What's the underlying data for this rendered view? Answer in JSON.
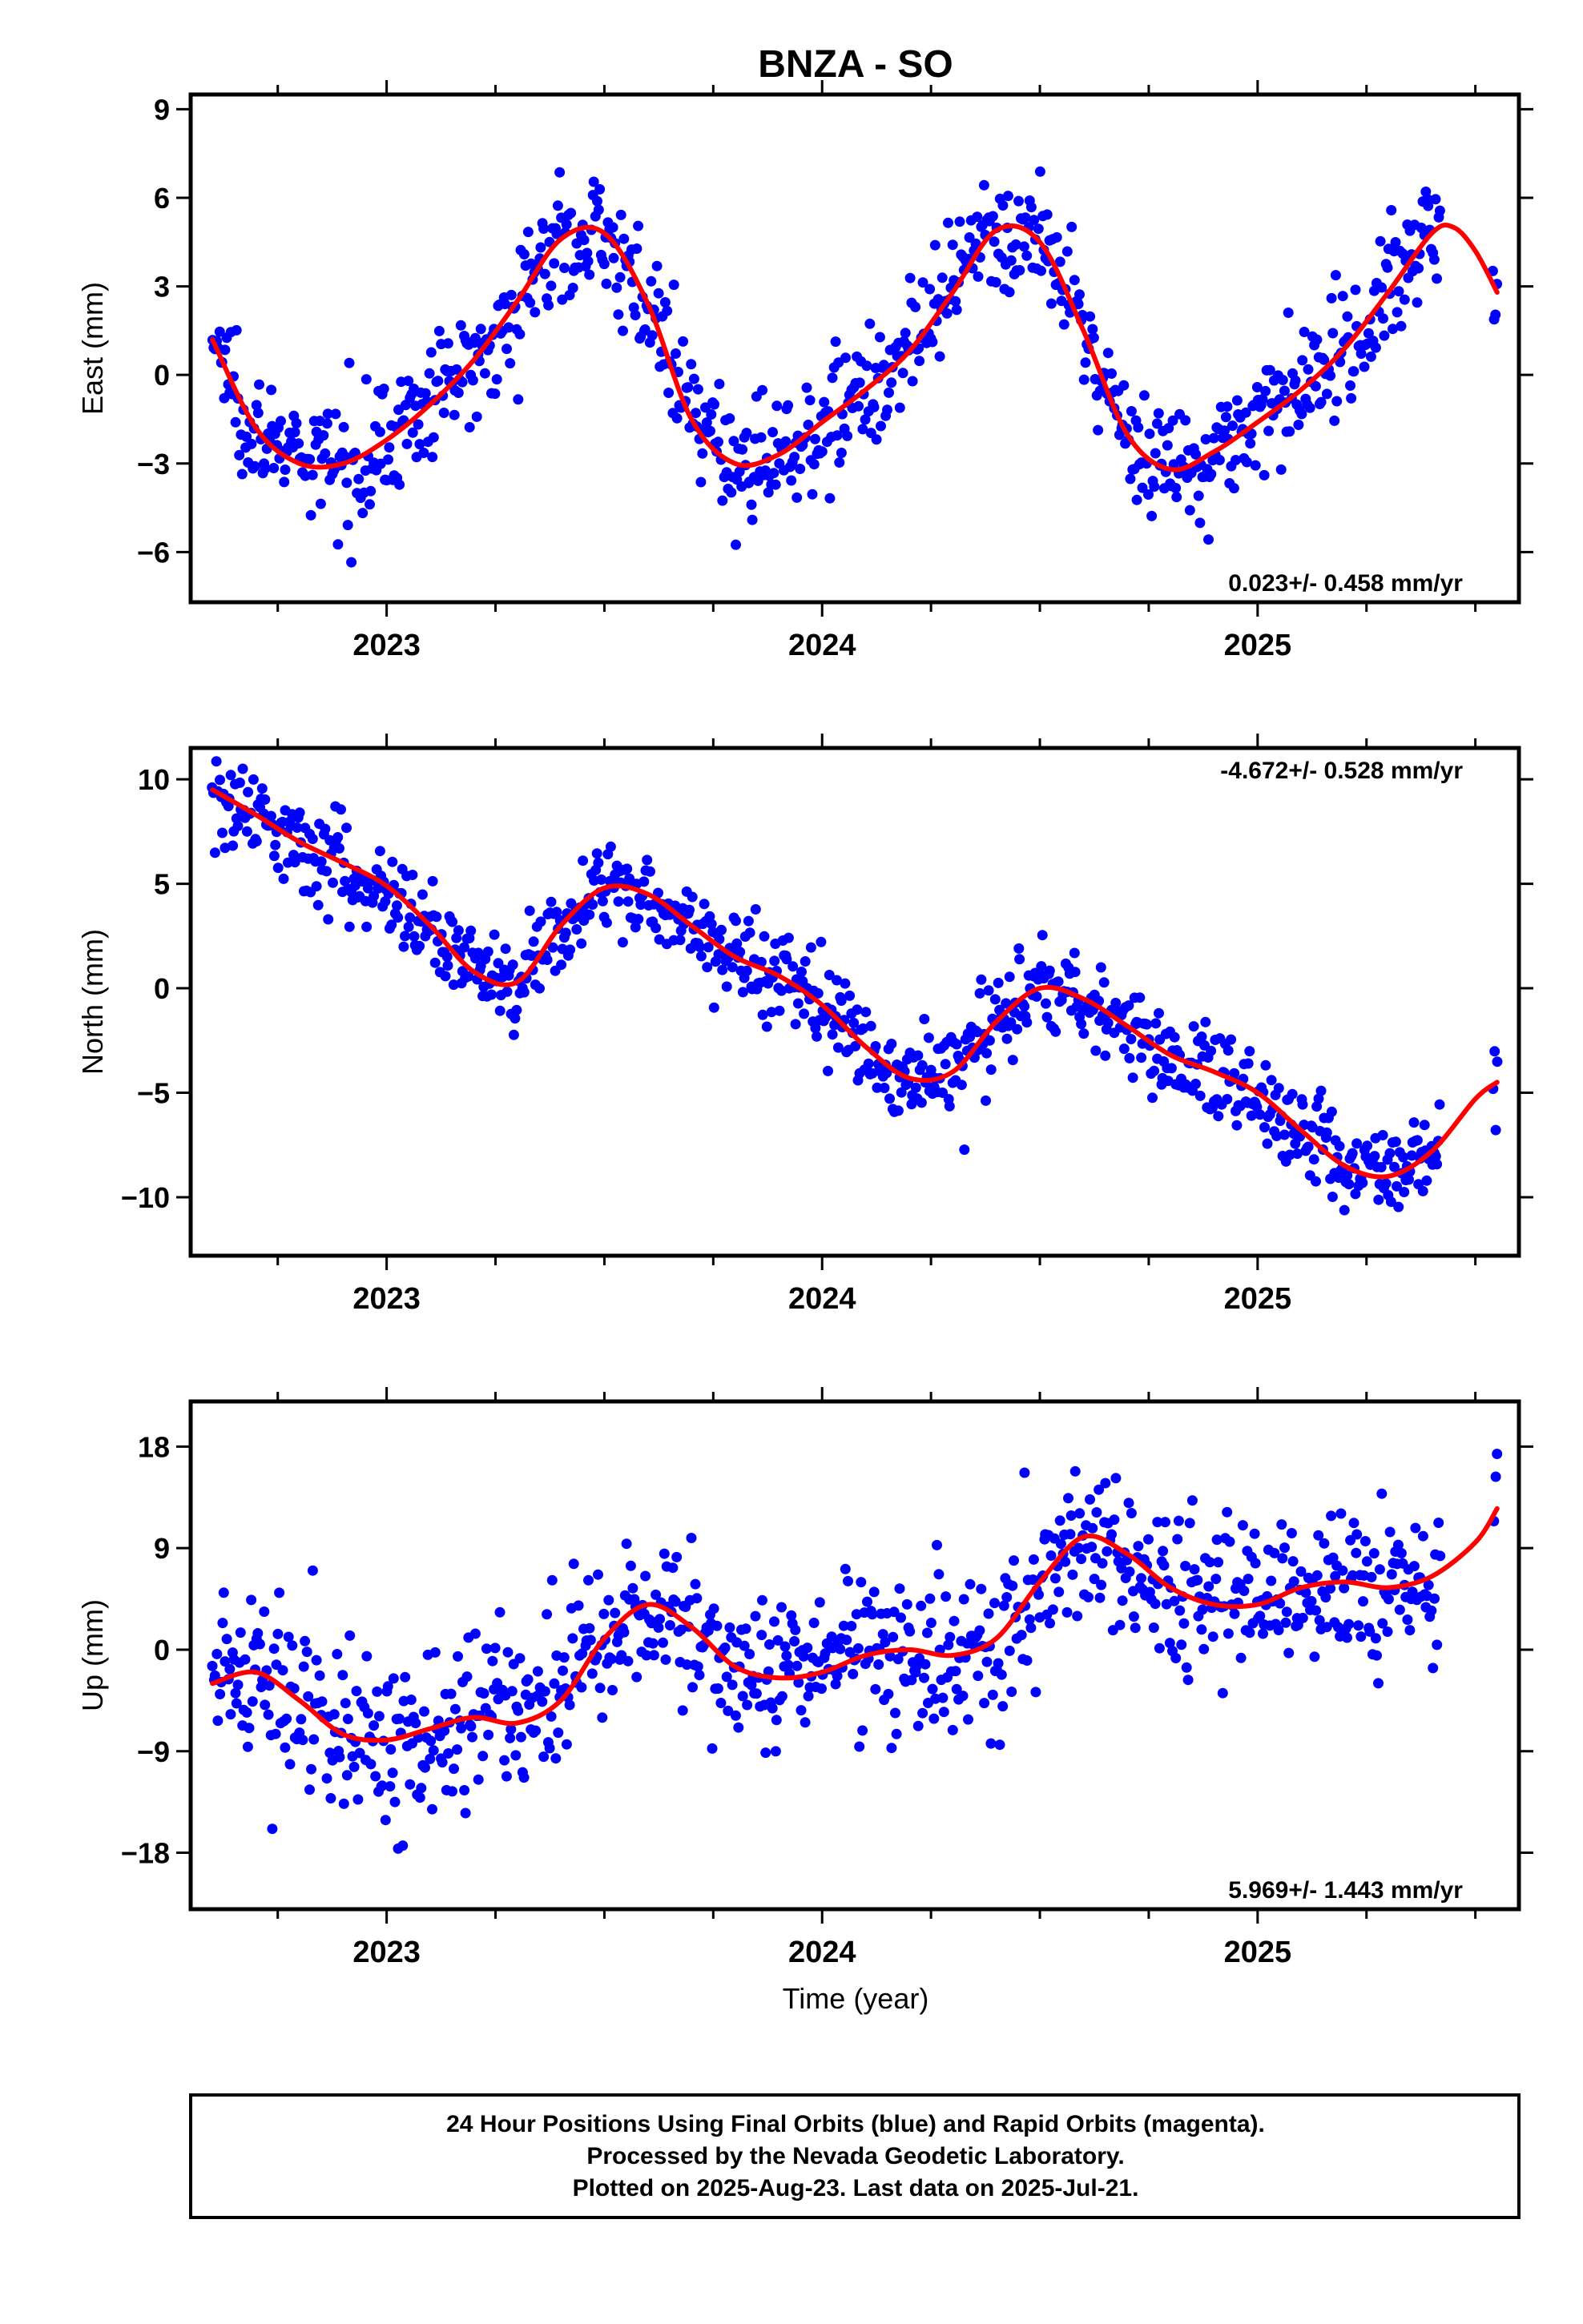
{
  "figure": {
    "title": "BNZA - SO",
    "x_axis_label": "Time (year)"
  },
  "chart_data": [
    {
      "type": "scatter",
      "ylabel": "East (mm)",
      "xlim": [
        2022.55,
        2025.6
      ],
      "ylim": [
        -7.7,
        9.5
      ],
      "yticks": [
        -6,
        -3,
        0,
        3,
        6,
        9
      ],
      "ytick_labels": [
        "−6",
        "−3",
        "0",
        "3",
        "6",
        "9"
      ],
      "xticks": [
        2023,
        2024,
        2025
      ],
      "xtick_labels": [
        "2023",
        "2024",
        "2025"
      ],
      "rate_label": "0.023+/- 0.458 mm/yr",
      "rate_position": "bottom-right",
      "series": [
        {
          "kind": "points",
          "color": "#0000ff",
          "model": "annual",
          "mean": 1.0,
          "amp": 4.0,
          "phase": -0.21,
          "trend": 0.0,
          "noise": 1.0
        },
        {
          "kind": "curve",
          "color": "#ff0000",
          "x": [
            2022.6,
            2022.7,
            2022.8,
            2022.9,
            2023.0,
            2023.1,
            2023.2,
            2023.3,
            2023.4,
            2023.5,
            2023.6,
            2023.7,
            2023.8,
            2023.9,
            2024.0,
            2024.1,
            2024.2,
            2024.3,
            2024.4,
            2024.5,
            2024.6,
            2024.7,
            2024.8,
            2024.9,
            2025.0,
            2025.1,
            2025.2,
            2025.3,
            2025.4,
            2025.45,
            2025.5,
            2025.55
          ],
          "y": [
            1.2,
            -1.8,
            -3.0,
            -3.0,
            -2.2,
            -1.0,
            0.5,
            2.5,
            4.6,
            4.8,
            2.4,
            -1.5,
            -3.0,
            -2.7,
            -1.6,
            -0.5,
            0.8,
            2.8,
            4.9,
            4.5,
            1.5,
            -2.0,
            -3.2,
            -2.6,
            -1.6,
            -0.5,
            0.9,
            2.8,
            4.8,
            5.0,
            4.2,
            2.8
          ]
        }
      ]
    },
    {
      "type": "scatter",
      "ylabel": "North (mm)",
      "xlim": [
        2022.55,
        2025.6
      ],
      "ylim": [
        -12.8,
        11.5
      ],
      "yticks": [
        -10,
        -5,
        0,
        5,
        10
      ],
      "ytick_labels": [
        "−10",
        "−5",
        "0",
        "5",
        "10"
      ],
      "xticks": [
        2023,
        2024,
        2025
      ],
      "xtick_labels": [
        "2023",
        "2024",
        "2025"
      ],
      "rate_label": "-4.672+/- 0.528 mm/yr",
      "rate_position": "top-right",
      "series": [
        {
          "kind": "points",
          "color": "#0000ff",
          "model": "trend",
          "mean": 9.0,
          "amp": 2.6,
          "phase": 0.3,
          "trend": -4.67,
          "noise": 1.1
        },
        {
          "kind": "curve",
          "color": "#ff0000",
          "x": [
            2022.6,
            2022.7,
            2022.8,
            2022.9,
            2023.0,
            2023.1,
            2023.2,
            2023.3,
            2023.4,
            2023.5,
            2023.6,
            2023.7,
            2023.8,
            2023.9,
            2024.0,
            2024.1,
            2024.2,
            2024.3,
            2024.4,
            2024.5,
            2024.6,
            2024.7,
            2024.8,
            2024.9,
            2025.0,
            2025.1,
            2025.2,
            2025.3,
            2025.4,
            2025.5,
            2025.55
          ],
          "y": [
            9.5,
            8.3,
            7.0,
            6.0,
            4.9,
            3.0,
            0.8,
            0.3,
            3.0,
            4.8,
            4.5,
            3.0,
            1.5,
            0.6,
            -0.8,
            -2.8,
            -4.3,
            -4.0,
            -1.6,
            0.0,
            -0.5,
            -1.8,
            -3.2,
            -4.0,
            -5.0,
            -6.8,
            -8.5,
            -9.0,
            -7.8,
            -5.3,
            -4.5
          ]
        }
      ]
    },
    {
      "type": "scatter",
      "ylabel": "Up (mm)",
      "xlim": [
        2022.55,
        2025.6
      ],
      "ylim": [
        -23,
        22
      ],
      "yticks": [
        -18,
        -9,
        0,
        9,
        18
      ],
      "ytick_labels": [
        "−18",
        "−9",
        "0",
        "9",
        "18"
      ],
      "xticks": [
        2023,
        2024,
        2025
      ],
      "xtick_labels": [
        "2023",
        "2024",
        "2025"
      ],
      "rate_label": "5.969+/- 1.443 mm/yr",
      "rate_position": "bottom-right",
      "series": [
        {
          "kind": "points",
          "color": "#0000ff",
          "model": "up",
          "mean": -3.0,
          "amp": 3.0,
          "phase": 0.15,
          "trend": 5.97,
          "noise": 3.6
        },
        {
          "kind": "curve",
          "color": "#ff0000",
          "x": [
            2022.6,
            2022.7,
            2022.8,
            2022.9,
            2023.0,
            2023.1,
            2023.2,
            2023.3,
            2023.4,
            2023.5,
            2023.6,
            2023.7,
            2023.8,
            2023.9,
            2024.0,
            2024.1,
            2024.2,
            2024.3,
            2024.4,
            2024.5,
            2024.6,
            2024.7,
            2024.8,
            2024.9,
            2025.0,
            2025.1,
            2025.2,
            2025.3,
            2025.4,
            2025.5,
            2025.55
          ],
          "y": [
            -3.0,
            -2.0,
            -4.5,
            -7.5,
            -8.0,
            -7.0,
            -6.0,
            -6.5,
            -4.5,
            1.0,
            4.0,
            2.0,
            -1.5,
            -2.5,
            -2.0,
            -0.5,
            0.0,
            -0.5,
            1.0,
            6.0,
            10.0,
            8.5,
            5.5,
            4.0,
            4.0,
            5.5,
            6.0,
            5.5,
            6.5,
            9.5,
            12.5
          ]
        }
      ]
    }
  ],
  "footer": {
    "lines": [
      "24 Hour Positions Using Final Orbits (blue) and Rapid Orbits (magenta).",
      "Processed by the Nevada Geodetic Laboratory.",
      "Plotted on 2025-Aug-23. Last data on 2025-Jul-21."
    ]
  }
}
